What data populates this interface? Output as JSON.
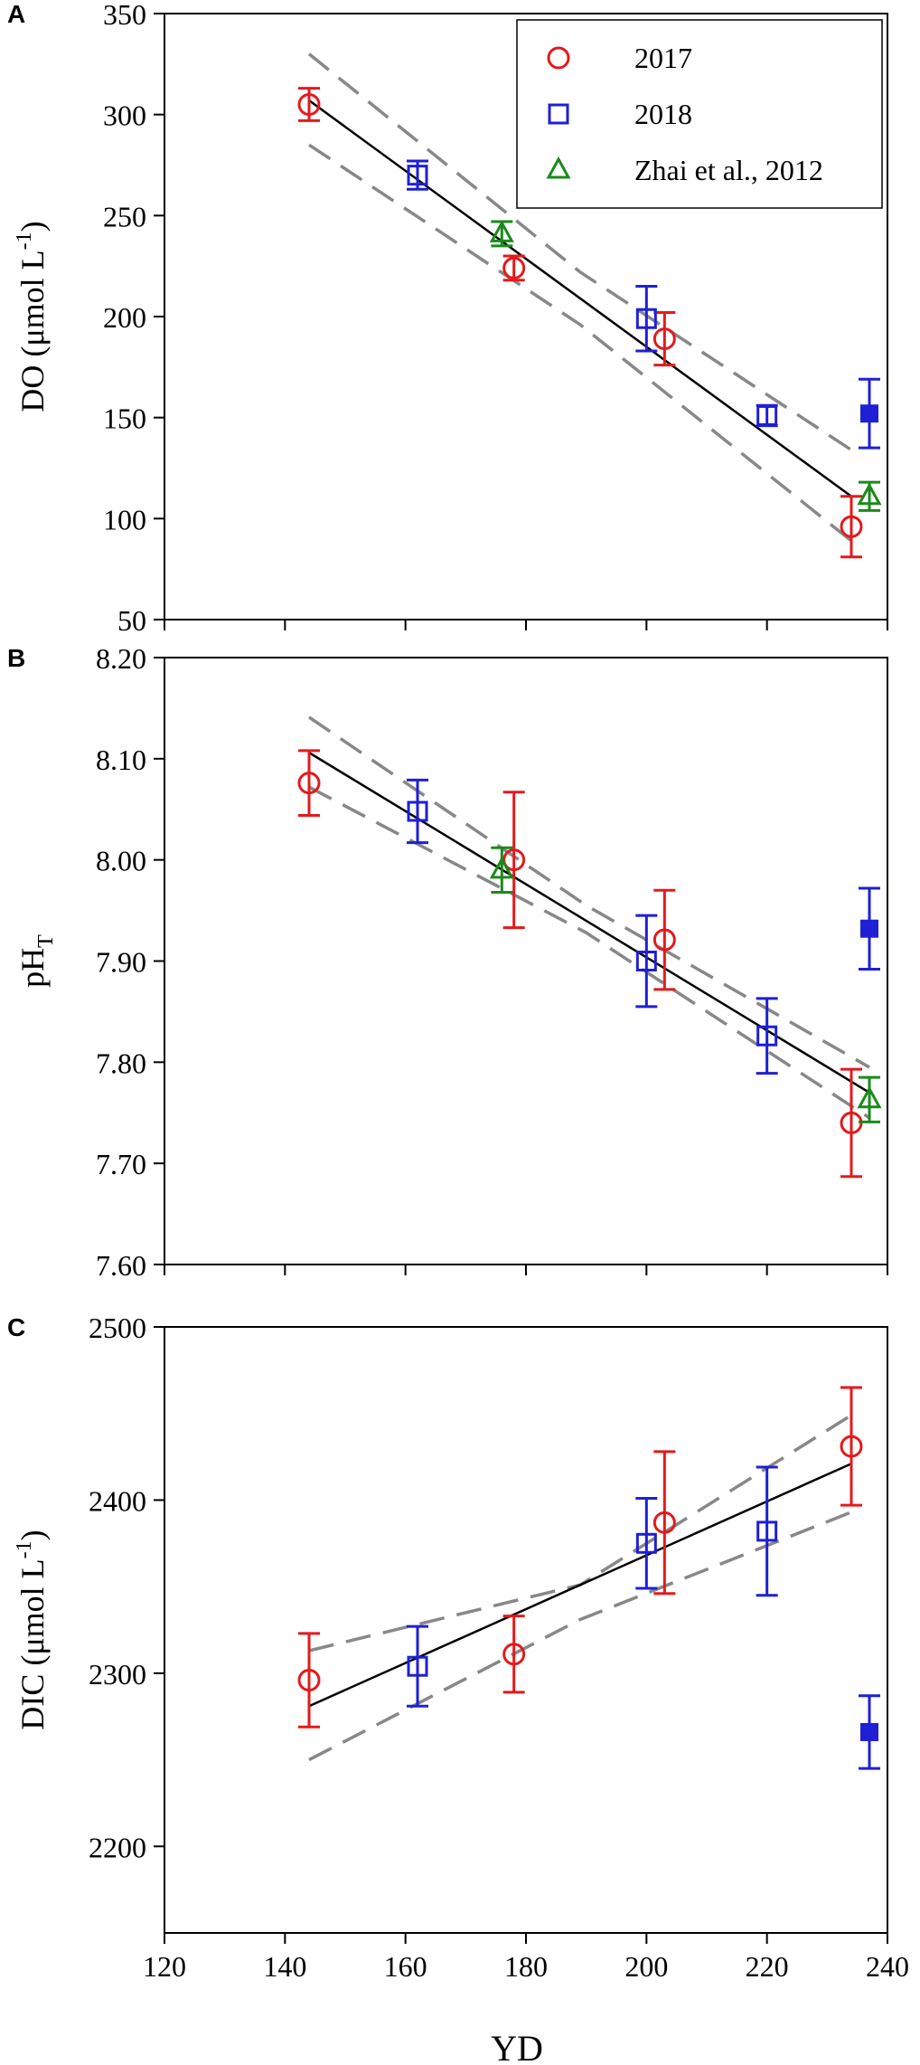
{
  "figure": {
    "xlabel": "YD",
    "x_ticks": [
      "120",
      "140",
      "160",
      "180",
      "200",
      "220",
      "240"
    ]
  },
  "legend": {
    "entries": [
      {
        "label": "2017",
        "color": "#e31a1c",
        "marker": "circle-open"
      },
      {
        "label": "2018",
        "color": "#1f1fd6",
        "marker": "square-open"
      },
      {
        "label": "Zhai et al., 2012",
        "color": "#1a8a1a",
        "marker": "triangle-open"
      }
    ]
  },
  "colors": {
    "y2017": "#e31a1c",
    "y2018": "#1f1fd6",
    "zhai": "#1a8a1a",
    "fit": "#000000",
    "ci": "#888888"
  },
  "chart_data": [
    {
      "panel_letter": "A",
      "type": "scatter",
      "ylabel_main": "DO (μmol L",
      "ylabel_sup": "-1",
      "ylabel_tail": ")",
      "xlim": [
        120,
        240
      ],
      "ylim": [
        50,
        350
      ],
      "y_ticks": [
        "50",
        "100",
        "150",
        "200",
        "250",
        "300",
        "350"
      ],
      "y_tick_values": [
        50,
        100,
        150,
        200,
        250,
        300,
        350
      ],
      "series": [
        {
          "key": "y2017",
          "marker": "circle-open",
          "points": [
            [
              144,
              305,
              8
            ],
            [
              178,
              224,
              6
            ],
            [
              203,
              189,
              13
            ],
            [
              234,
              96,
              15
            ]
          ]
        },
        {
          "key": "y2018",
          "marker": "square-open",
          "points": [
            [
              162,
              270,
              7
            ],
            [
              200,
              199,
              16
            ],
            [
              220,
              151,
              5
            ]
          ]
        },
        {
          "key": "y2018",
          "marker": "square-filled",
          "points": [
            [
              237,
              152,
              17
            ]
          ]
        },
        {
          "key": "zhai",
          "marker": "triangle-open",
          "points": [
            [
              176,
              241,
              6
            ],
            [
              237,
              111,
              7
            ]
          ]
        }
      ],
      "fit": {
        "x": [
          144,
          234
        ],
        "y": [
          307,
          111
        ]
      },
      "ci_upper": {
        "x": [
          144,
          189,
          234
        ],
        "y": [
          330,
          222,
          134
        ]
      },
      "ci_lower": {
        "x": [
          144,
          189,
          234
        ],
        "y": [
          285,
          196,
          89
        ]
      }
    },
    {
      "panel_letter": "B",
      "type": "scatter",
      "ylabel_main": "pH",
      "ylabel_sub": "T",
      "xlim": [
        120,
        240
      ],
      "ylim": [
        7.6,
        8.2
      ],
      "y_ticks": [
        "7.60",
        "7.70",
        "7.80",
        "7.90",
        "8.00",
        "8.10",
        "8.20"
      ],
      "y_tick_values": [
        7.6,
        7.7,
        7.8,
        7.9,
        8.0,
        8.1,
        8.2
      ],
      "series": [
        {
          "key": "y2017",
          "marker": "circle-open",
          "points": [
            [
              144,
              8.076,
              0.032
            ],
            [
              178,
              8.0,
              0.067
            ],
            [
              203,
              7.921,
              0.049
            ],
            [
              234,
              7.74,
              0.053
            ]
          ]
        },
        {
          "key": "y2018",
          "marker": "square-open",
          "points": [
            [
              162,
              8.048,
              0.031
            ],
            [
              200,
              7.9,
              0.045
            ],
            [
              220,
              7.826,
              0.037
            ]
          ]
        },
        {
          "key": "y2018",
          "marker": "square-filled",
          "points": [
            [
              237,
              7.932,
              0.04
            ]
          ]
        },
        {
          "key": "zhai",
          "marker": "triangle-open",
          "points": [
            [
              176,
              7.99,
              0.022
            ],
            [
              237,
              7.763,
              0.022
            ]
          ]
        }
      ],
      "fit": {
        "x": [
          144,
          237
        ],
        "y": [
          8.106,
          7.77
        ]
      },
      "ci_upper": {
        "x": [
          144,
          190,
          237
        ],
        "y": [
          8.141,
          7.955,
          7.795
        ]
      },
      "ci_lower": {
        "x": [
          144,
          190,
          237
        ],
        "y": [
          8.072,
          7.928,
          7.745
        ]
      }
    },
    {
      "panel_letter": "C",
      "type": "scatter",
      "ylabel_main": "DIC (μmol L",
      "ylabel_sup": "-1",
      "ylabel_tail": ")",
      "xlim": [
        120,
        240
      ],
      "ylim": [
        2150,
        2500
      ],
      "y_ticks": [
        "2200",
        "2300",
        "2400",
        "2500"
      ],
      "y_tick_values": [
        2200,
        2300,
        2400,
        2500
      ],
      "series": [
        {
          "key": "y2017",
          "marker": "circle-open",
          "points": [
            [
              144,
              2296,
              27
            ],
            [
              178,
              2311,
              22
            ],
            [
              203,
              2387,
              41
            ],
            [
              234,
              2431,
              34
            ]
          ]
        },
        {
          "key": "y2018",
          "marker": "square-open",
          "points": [
            [
              162,
              2304,
              23
            ],
            [
              200,
              2375,
              26
            ],
            [
              220,
              2382,
              37
            ]
          ]
        },
        {
          "key": "y2018",
          "marker": "square-filled",
          "points": [
            [
              237,
              2266,
              21
            ]
          ]
        }
      ],
      "fit": {
        "x": [
          144,
          234
        ],
        "y": [
          2281,
          2421
        ]
      },
      "ci_upper": {
        "x": [
          144,
          189,
          234
        ],
        "y": [
          2313,
          2351,
          2449
        ]
      },
      "ci_lower": {
        "x": [
          144,
          189,
          234
        ],
        "y": [
          2250,
          2331,
          2393
        ]
      }
    }
  ]
}
